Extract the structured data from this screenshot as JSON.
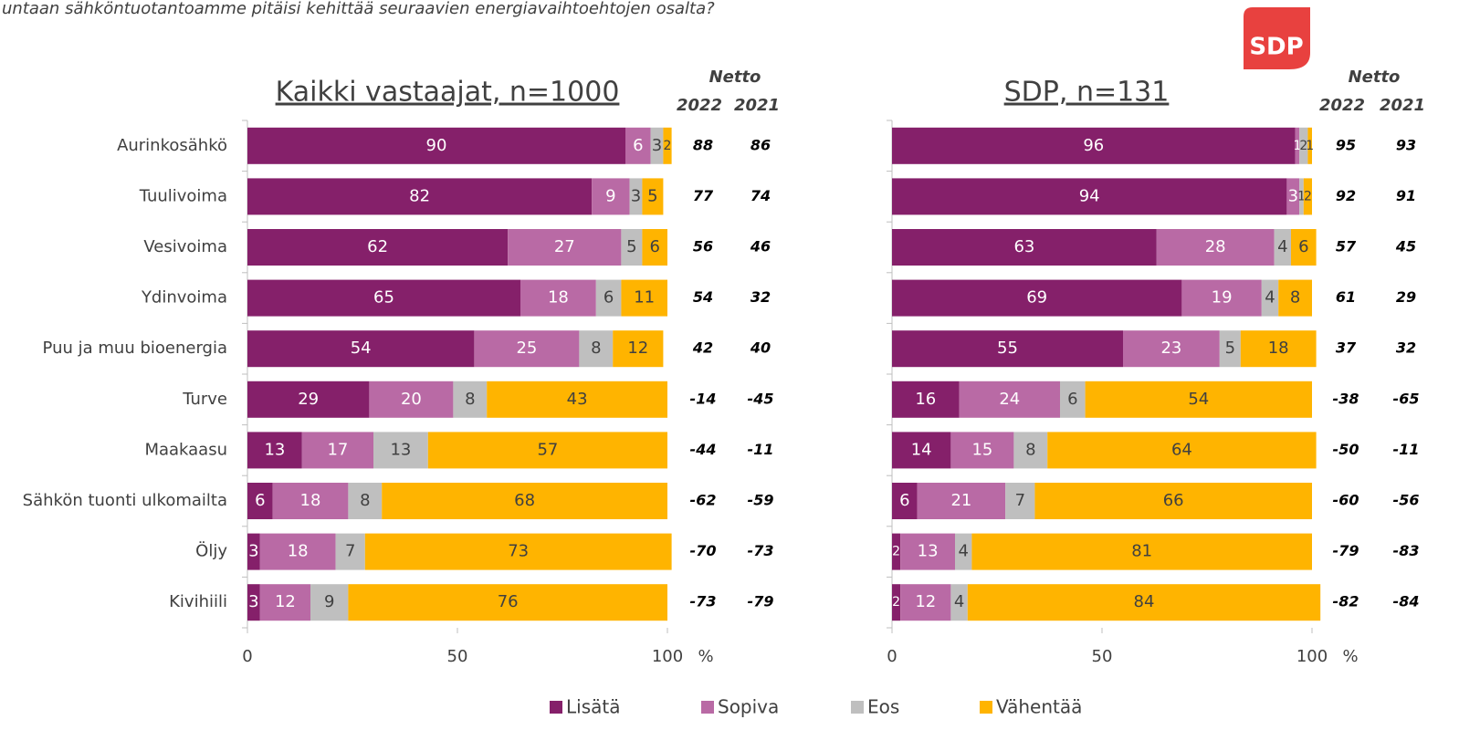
{
  "question": "untaan sähköntuotantoamme pitäisi kehittää seuraavien energiavaihtoehtojen osalta?",
  "logo": "SDP",
  "chart_data": [
    {
      "type": "stacked-bar",
      "orientation": "horizontal",
      "title": "Kaikki vastaajat, n=1000",
      "categories": [
        "Aurinkosähkö",
        "Tuulivoima",
        "Vesivoima",
        "Ydinvoima",
        "Puu ja muu bioenergia",
        "Turve",
        "Maakaasu",
        "Sähkön tuonti ulkomailta",
        "Öljy",
        "Kivihiili"
      ],
      "series": [
        {
          "name": "Lisätä",
          "color": "#85206a",
          "values": [
            90,
            82,
            62,
            65,
            54,
            29,
            13,
            6,
            3,
            3
          ]
        },
        {
          "name": "Sopiva",
          "color": "#b96aa5",
          "values": [
            6,
            9,
            27,
            18,
            25,
            20,
            17,
            18,
            18,
            12
          ]
        },
        {
          "name": "Eos",
          "color": "#bfbfbf",
          "values": [
            3,
            3,
            5,
            6,
            8,
            8,
            13,
            8,
            7,
            9
          ]
        },
        {
          "name": "Vähentää",
          "color": "#ffb400",
          "values": [
            2,
            5,
            6,
            11,
            12,
            43,
            57,
            68,
            73,
            76
          ]
        }
      ],
      "xlim": [
        0,
        100
      ],
      "xticks": [
        0,
        50,
        100
      ],
      "x_unit": "%",
      "netto": {
        "title": "Netto",
        "columns": [
          {
            "name": "2022",
            "values": [
              88,
              77,
              56,
              54,
              42,
              -14,
              -44,
              -62,
              -70,
              -73
            ]
          },
          {
            "name": "2021",
            "values": [
              86,
              74,
              46,
              32,
              40,
              -45,
              -11,
              -59,
              -73,
              -79
            ]
          }
        ]
      }
    },
    {
      "type": "stacked-bar",
      "orientation": "horizontal",
      "title": "SDP, n=131",
      "series": [
        {
          "color": "#85206a",
          "values": [
            96,
            94,
            63,
            69,
            55,
            16,
            14,
            6,
            2,
            2
          ]
        },
        {
          "color": "#b96aa5",
          "values": [
            1,
            3,
            28,
            19,
            23,
            24,
            15,
            21,
            13,
            12
          ]
        },
        {
          "color": "#bfbfbf",
          "values": [
            2,
            1,
            4,
            4,
            5,
            6,
            8,
            7,
            4,
            4
          ]
        },
        {
          "color": "#ffb400",
          "values": [
            1,
            2,
            6,
            8,
            18,
            54,
            64,
            66,
            81,
            84
          ]
        }
      ],
      "xlim": [
        0,
        100
      ],
      "xticks": [
        0,
        50,
        100
      ],
      "x_unit": "%",
      "netto": {
        "title": "Netto",
        "columns": [
          {
            "name": "2022",
            "values": [
              95,
              92,
              57,
              61,
              37,
              -38,
              -50,
              -60,
              -79,
              -82
            ]
          },
          {
            "name": "2021",
            "values": [
              93,
              91,
              45,
              29,
              32,
              -65,
              -11,
              -56,
              -83,
              -84
            ]
          }
        ]
      }
    }
  ]
}
